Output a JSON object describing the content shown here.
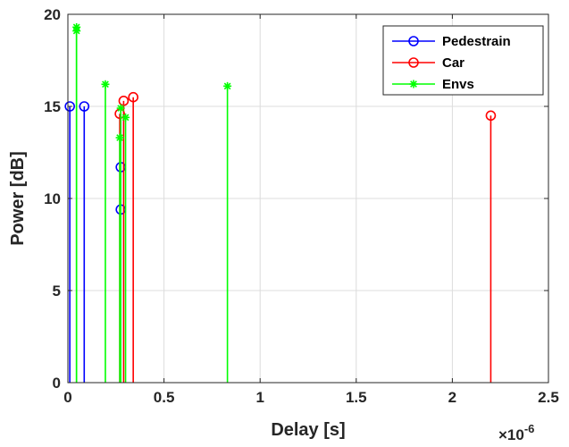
{
  "chart_data": {
    "type": "stem",
    "xlabel": "Delay [s]",
    "ylabel": "Power [dB]",
    "x_multiplier": "×10",
    "x_multiplier_exponent": "-6",
    "xlim": [
      0,
      2.5
    ],
    "ylim": [
      0,
      20
    ],
    "xticks": [
      0,
      0.5,
      1,
      1.5,
      2,
      2.5
    ],
    "xtick_labels": [
      "0",
      "0.5",
      "1",
      "1.5",
      "2",
      "2.5"
    ],
    "yticks": [
      0,
      5,
      10,
      15,
      20
    ],
    "ytick_labels": [
      "0",
      "5",
      "10",
      "15",
      "20"
    ],
    "grid": true,
    "legend_position": "top-right",
    "series": [
      {
        "name": "Pedestrain",
        "color": "#0000ff",
        "marker": "o",
        "x": [
          0.01,
          0.085,
          0.275,
          0.275
        ],
        "y": [
          15.0,
          15.0,
          11.7,
          9.4
        ]
      },
      {
        "name": "Car",
        "color": "#ff0000",
        "marker": "o",
        "x": [
          0.27,
          0.29,
          0.34,
          2.2
        ],
        "y": [
          14.6,
          15.3,
          15.5,
          14.5
        ]
      },
      {
        "name": "Envs",
        "color": "#00ff00",
        "marker": "*",
        "x": [
          0.045,
          0.045,
          0.195,
          0.27,
          0.275,
          0.3,
          0.83
        ],
        "y": [
          19.3,
          19.1,
          16.2,
          13.3,
          14.9,
          14.4,
          16.1
        ]
      }
    ]
  }
}
